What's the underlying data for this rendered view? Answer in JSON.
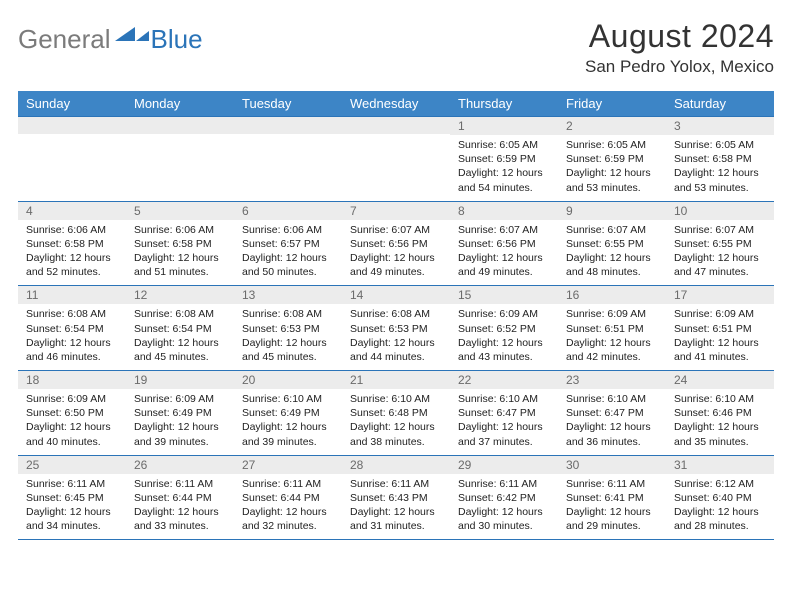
{
  "logo": {
    "word1": "General",
    "word2": "Blue"
  },
  "title": "August 2024",
  "location": "San Pedro Yolox, Mexico",
  "colors": {
    "header_bg": "#3d85c6",
    "rule": "#2b74b8",
    "daynum_bg": "#ececec",
    "logo_gray": "#7b7b7b",
    "logo_blue": "#2b74b8"
  },
  "weekdays": [
    "Sunday",
    "Monday",
    "Tuesday",
    "Wednesday",
    "Thursday",
    "Friday",
    "Saturday"
  ],
  "weeks": [
    [
      {
        "n": "",
        "lines": []
      },
      {
        "n": "",
        "lines": []
      },
      {
        "n": "",
        "lines": []
      },
      {
        "n": "",
        "lines": []
      },
      {
        "n": "1",
        "lines": [
          "Sunrise: 6:05 AM",
          "Sunset: 6:59 PM",
          "Daylight: 12 hours",
          "and 54 minutes."
        ]
      },
      {
        "n": "2",
        "lines": [
          "Sunrise: 6:05 AM",
          "Sunset: 6:59 PM",
          "Daylight: 12 hours",
          "and 53 minutes."
        ]
      },
      {
        "n": "3",
        "lines": [
          "Sunrise: 6:05 AM",
          "Sunset: 6:58 PM",
          "Daylight: 12 hours",
          "and 53 minutes."
        ]
      }
    ],
    [
      {
        "n": "4",
        "lines": [
          "Sunrise: 6:06 AM",
          "Sunset: 6:58 PM",
          "Daylight: 12 hours",
          "and 52 minutes."
        ]
      },
      {
        "n": "5",
        "lines": [
          "Sunrise: 6:06 AM",
          "Sunset: 6:58 PM",
          "Daylight: 12 hours",
          "and 51 minutes."
        ]
      },
      {
        "n": "6",
        "lines": [
          "Sunrise: 6:06 AM",
          "Sunset: 6:57 PM",
          "Daylight: 12 hours",
          "and 50 minutes."
        ]
      },
      {
        "n": "7",
        "lines": [
          "Sunrise: 6:07 AM",
          "Sunset: 6:56 PM",
          "Daylight: 12 hours",
          "and 49 minutes."
        ]
      },
      {
        "n": "8",
        "lines": [
          "Sunrise: 6:07 AM",
          "Sunset: 6:56 PM",
          "Daylight: 12 hours",
          "and 49 minutes."
        ]
      },
      {
        "n": "9",
        "lines": [
          "Sunrise: 6:07 AM",
          "Sunset: 6:55 PM",
          "Daylight: 12 hours",
          "and 48 minutes."
        ]
      },
      {
        "n": "10",
        "lines": [
          "Sunrise: 6:07 AM",
          "Sunset: 6:55 PM",
          "Daylight: 12 hours",
          "and 47 minutes."
        ]
      }
    ],
    [
      {
        "n": "11",
        "lines": [
          "Sunrise: 6:08 AM",
          "Sunset: 6:54 PM",
          "Daylight: 12 hours",
          "and 46 minutes."
        ]
      },
      {
        "n": "12",
        "lines": [
          "Sunrise: 6:08 AM",
          "Sunset: 6:54 PM",
          "Daylight: 12 hours",
          "and 45 minutes."
        ]
      },
      {
        "n": "13",
        "lines": [
          "Sunrise: 6:08 AM",
          "Sunset: 6:53 PM",
          "Daylight: 12 hours",
          "and 45 minutes."
        ]
      },
      {
        "n": "14",
        "lines": [
          "Sunrise: 6:08 AM",
          "Sunset: 6:53 PM",
          "Daylight: 12 hours",
          "and 44 minutes."
        ]
      },
      {
        "n": "15",
        "lines": [
          "Sunrise: 6:09 AM",
          "Sunset: 6:52 PM",
          "Daylight: 12 hours",
          "and 43 minutes."
        ]
      },
      {
        "n": "16",
        "lines": [
          "Sunrise: 6:09 AM",
          "Sunset: 6:51 PM",
          "Daylight: 12 hours",
          "and 42 minutes."
        ]
      },
      {
        "n": "17",
        "lines": [
          "Sunrise: 6:09 AM",
          "Sunset: 6:51 PM",
          "Daylight: 12 hours",
          "and 41 minutes."
        ]
      }
    ],
    [
      {
        "n": "18",
        "lines": [
          "Sunrise: 6:09 AM",
          "Sunset: 6:50 PM",
          "Daylight: 12 hours",
          "and 40 minutes."
        ]
      },
      {
        "n": "19",
        "lines": [
          "Sunrise: 6:09 AM",
          "Sunset: 6:49 PM",
          "Daylight: 12 hours",
          "and 39 minutes."
        ]
      },
      {
        "n": "20",
        "lines": [
          "Sunrise: 6:10 AM",
          "Sunset: 6:49 PM",
          "Daylight: 12 hours",
          "and 39 minutes."
        ]
      },
      {
        "n": "21",
        "lines": [
          "Sunrise: 6:10 AM",
          "Sunset: 6:48 PM",
          "Daylight: 12 hours",
          "and 38 minutes."
        ]
      },
      {
        "n": "22",
        "lines": [
          "Sunrise: 6:10 AM",
          "Sunset: 6:47 PM",
          "Daylight: 12 hours",
          "and 37 minutes."
        ]
      },
      {
        "n": "23",
        "lines": [
          "Sunrise: 6:10 AM",
          "Sunset: 6:47 PM",
          "Daylight: 12 hours",
          "and 36 minutes."
        ]
      },
      {
        "n": "24",
        "lines": [
          "Sunrise: 6:10 AM",
          "Sunset: 6:46 PM",
          "Daylight: 12 hours",
          "and 35 minutes."
        ]
      }
    ],
    [
      {
        "n": "25",
        "lines": [
          "Sunrise: 6:11 AM",
          "Sunset: 6:45 PM",
          "Daylight: 12 hours",
          "and 34 minutes."
        ]
      },
      {
        "n": "26",
        "lines": [
          "Sunrise: 6:11 AM",
          "Sunset: 6:44 PM",
          "Daylight: 12 hours",
          "and 33 minutes."
        ]
      },
      {
        "n": "27",
        "lines": [
          "Sunrise: 6:11 AM",
          "Sunset: 6:44 PM",
          "Daylight: 12 hours",
          "and 32 minutes."
        ]
      },
      {
        "n": "28",
        "lines": [
          "Sunrise: 6:11 AM",
          "Sunset: 6:43 PM",
          "Daylight: 12 hours",
          "and 31 minutes."
        ]
      },
      {
        "n": "29",
        "lines": [
          "Sunrise: 6:11 AM",
          "Sunset: 6:42 PM",
          "Daylight: 12 hours",
          "and 30 minutes."
        ]
      },
      {
        "n": "30",
        "lines": [
          "Sunrise: 6:11 AM",
          "Sunset: 6:41 PM",
          "Daylight: 12 hours",
          "and 29 minutes."
        ]
      },
      {
        "n": "31",
        "lines": [
          "Sunrise: 6:12 AM",
          "Sunset: 6:40 PM",
          "Daylight: 12 hours",
          "and 28 minutes."
        ]
      }
    ]
  ]
}
